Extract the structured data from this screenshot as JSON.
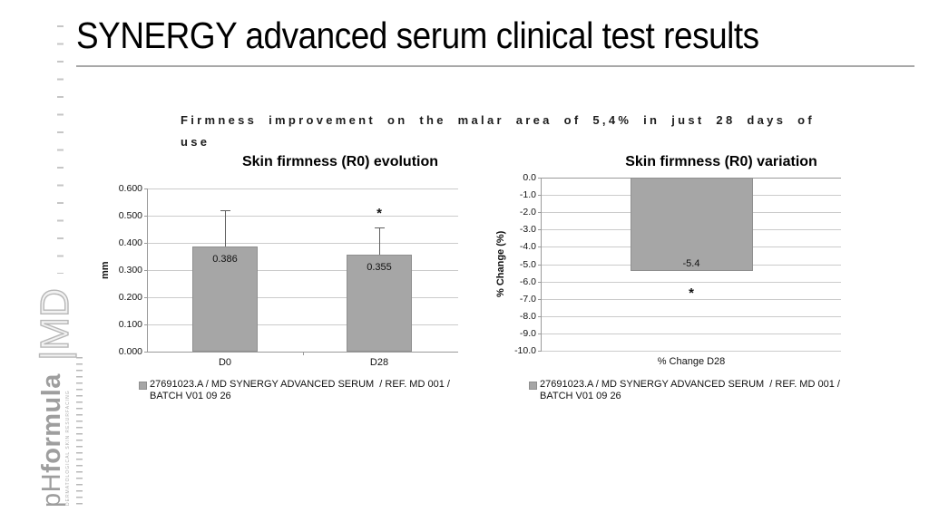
{
  "slide": {
    "title": "SYNERGY advanced serum clinical test results",
    "subtitle_lines": [
      "Firmness improvement on the malar area of 5,4% in just 28 days of",
      "use"
    ],
    "brand": {
      "ph": "pH",
      "formula": "formula",
      "md": "|MD",
      "caption": "DERMATOLOGICAL SKIN RESURFACING"
    }
  },
  "chart_data": [
    {
      "type": "bar",
      "title": "Skin firmness (R0) evolution",
      "ylabel": "mm",
      "categories": [
        "D0",
        "D28"
      ],
      "values": [
        0.386,
        0.355
      ],
      "data_labels": [
        "0.386",
        "0.355"
      ],
      "error_high": [
        0.52,
        0.455
      ],
      "significance": [
        "",
        "*"
      ],
      "ylim": [
        0,
        0.6
      ],
      "yticks": [
        "0.600",
        "0.500",
        "0.400",
        "0.300",
        "0.200",
        "0.100",
        "0.000"
      ],
      "grid": true,
      "legend_position": "bottom-left",
      "legend_lines": [
        "27691023.A / MD SYNERGY ADVANCED SERUM  / REF. MD 001 /",
        "BATCH V01 09 26"
      ],
      "bar_color": "#a6a6a6"
    },
    {
      "type": "bar",
      "title": "Skin firmness (R0) variation",
      "ylabel": "% Change (%)",
      "categories": [
        "% Change D28"
      ],
      "values": [
        -5.4
      ],
      "data_labels": [
        "-5.4"
      ],
      "error_high": [],
      "significance": [
        "*"
      ],
      "ylim": [
        -10,
        0
      ],
      "yticks": [
        "0.0",
        "-1.0",
        "-2.0",
        "-3.0",
        "-4.0",
        "-5.0",
        "-6.0",
        "-7.0",
        "-8.0",
        "-9.0",
        "-10.0"
      ],
      "grid": true,
      "legend_position": "bottom-left",
      "legend_lines": [
        "27691023.A / MD SYNERGY ADVANCED SERUM  / REF. MD 001 /",
        "BATCH V01 09 26"
      ],
      "bar_color": "#a6a6a6"
    }
  ]
}
